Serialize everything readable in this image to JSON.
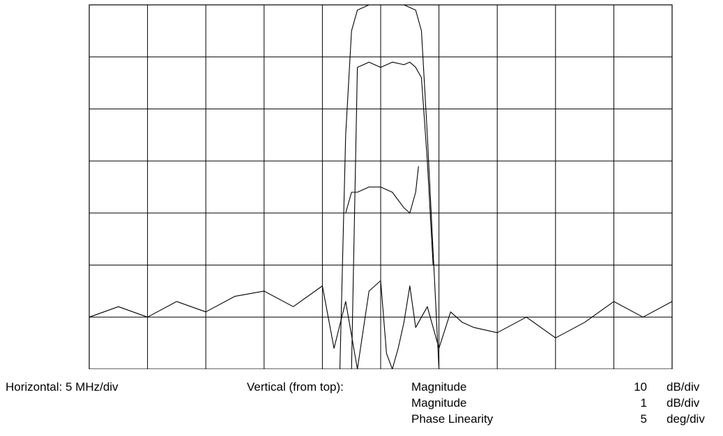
{
  "chart_data": {
    "type": "line",
    "title": "",
    "grid": true,
    "x_divisions": 10,
    "y_divisions": 7,
    "horizontal_scale": "Horizontal: 5 MHz/div",
    "vertical_heading": "Vertical (from top):",
    "traces": [
      {
        "label": "Magnitude",
        "value": "10",
        "unit": "dB/div"
      },
      {
        "label": "Magnitude",
        "value": "1",
        "unit": "dB/div"
      },
      {
        "label": "Phase Linearity",
        "value": "5",
        "unit": "deg/div"
      }
    ],
    "series": [
      {
        "x": [
          0.0,
          0.5,
          1.0,
          1.5,
          2.0,
          2.5,
          3.0,
          3.5,
          4.0,
          4.2,
          4.4,
          4.6,
          4.8,
          5.0,
          5.1,
          5.2,
          5.3,
          5.4,
          5.5,
          5.6,
          5.8,
          6.0,
          6.2,
          6.4,
          6.6,
          7.0,
          7.5,
          8.0,
          8.5,
          9.0,
          9.5,
          10.0
        ],
        "y": [
          1.0,
          1.2,
          1.0,
          1.3,
          1.1,
          1.4,
          1.5,
          1.2,
          1.6,
          0.4,
          1.3,
          0.0,
          1.5,
          1.7,
          0.3,
          0.0,
          0.4,
          0.9,
          1.6,
          0.8,
          1.2,
          0.4,
          1.1,
          0.9,
          0.8,
          0.7,
          1.0,
          0.6,
          0.9,
          1.3,
          1.0,
          1.3
        ]
      },
      {
        "x": [
          4.3,
          4.4,
          4.5,
          4.6,
          4.8,
          5.0,
          5.2,
          5.4,
          5.6,
          5.7,
          5.8,
          6.0
        ],
        "y": [
          0.0,
          4.5,
          6.5,
          6.9,
          7.0,
          7.0,
          7.0,
          7.0,
          6.9,
          6.5,
          4.5,
          0.0
        ]
      },
      {
        "x": [
          4.5,
          4.6,
          4.8,
          5.0,
          5.2,
          5.4,
          5.5,
          5.6,
          5.7,
          5.8,
          5.9,
          6.0
        ],
        "y": [
          0.0,
          5.8,
          5.9,
          5.8,
          5.9,
          5.85,
          5.9,
          5.8,
          5.6,
          4.0,
          2.0,
          2.0
        ]
      },
      {
        "x": [
          4.4,
          4.5,
          4.6,
          4.8,
          5.0,
          5.2,
          5.4,
          5.5,
          5.6,
          5.65
        ],
        "y": [
          3.0,
          3.4,
          3.4,
          3.5,
          3.5,
          3.4,
          3.1,
          3.0,
          3.4,
          3.9
        ]
      }
    ]
  }
}
